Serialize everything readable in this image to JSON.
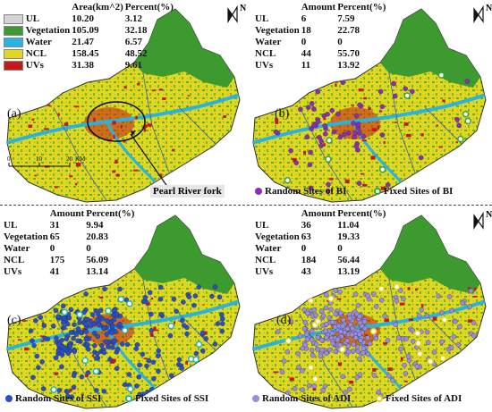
{
  "colors": {
    "UL": "#d4d4d4",
    "Vegetation": "#3d9a2f",
    "Water": "#2bb3e0",
    "NCL": "#e0d81e",
    "UVs": "#c21a1a",
    "bi_random": "#8a2fb5",
    "bi_fixed": "#3aa33a",
    "ssi_random": "#2a4fc4",
    "ssi_fixed": "#2ab3b0",
    "adi_random": "#9a8ce0",
    "adi_fixed": "#e6d21e"
  },
  "panel_a": {
    "label": "(a)",
    "header": {
      "class": "",
      "area": "Area(km^2)",
      "percent": "Percent(%)"
    },
    "rows": [
      {
        "class": "UL",
        "value": "10.20",
        "percent": "3.12"
      },
      {
        "class": "Vegetation",
        "value": "105.09",
        "percent": "32.18"
      },
      {
        "class": "Water",
        "value": "21.47",
        "percent": "6.57"
      },
      {
        "class": "NCL",
        "value": "158.45",
        "percent": "48.52"
      },
      {
        "class": "UVs",
        "value": "31.38",
        "percent": "9.61"
      }
    ],
    "north": "N"
  },
  "panel_b": {
    "label": "(b)",
    "header": {
      "amount": "Amount",
      "percent": "Percent(%)"
    },
    "rows": [
      {
        "class": "UL",
        "value": "6",
        "percent": "7.59"
      },
      {
        "class": "Vegetation",
        "value": "18",
        "percent": "22.78"
      },
      {
        "class": "Water",
        "value": "0",
        "percent": "0"
      },
      {
        "class": "NCL",
        "value": "44",
        "percent": "55.70"
      },
      {
        "class": "UVs",
        "value": "11",
        "percent": "13.92"
      }
    ],
    "north": "N",
    "legend_random": "Random Sites of BI",
    "legend_fixed": "Fixed Sites of BI"
  },
  "panel_c": {
    "label": "(c)",
    "header": {
      "amount": "Amount",
      "percent": "Percent(%)"
    },
    "rows": [
      {
        "class": "UL",
        "value": "31",
        "percent": "9.94"
      },
      {
        "class": "Vegetation",
        "value": "65",
        "percent": "20.83"
      },
      {
        "class": "Water",
        "value": "0",
        "percent": "0"
      },
      {
        "class": "NCL",
        "value": "175",
        "percent": "56.09"
      },
      {
        "class": "UVs",
        "value": "41",
        "percent": "13.14"
      }
    ],
    "legend_random": "Random Sites of SSI",
    "legend_fixed": "Fixed Sites of SSI"
  },
  "panel_d": {
    "label": "(d)",
    "header": {
      "amount": "Amount",
      "percent": "Percent(%)"
    },
    "rows": [
      {
        "class": "UL",
        "value": "36",
        "percent": "11.04"
      },
      {
        "class": "Vegetation",
        "value": "63",
        "percent": "19.33"
      },
      {
        "class": "Water",
        "value": "0",
        "percent": "0"
      },
      {
        "class": "NCL",
        "value": "184",
        "percent": "56.44"
      },
      {
        "class": "UVs",
        "value": "43",
        "percent": "13.19"
      }
    ],
    "north": "N",
    "legend_random": "Random Sites of ADI",
    "legend_fixed": "Fixed Sites of ADI"
  },
  "annotation": "Pearl River fork",
  "scalebar": {
    "t0": "0",
    "t1": "10",
    "t2": "20",
    "unit": "KM"
  }
}
